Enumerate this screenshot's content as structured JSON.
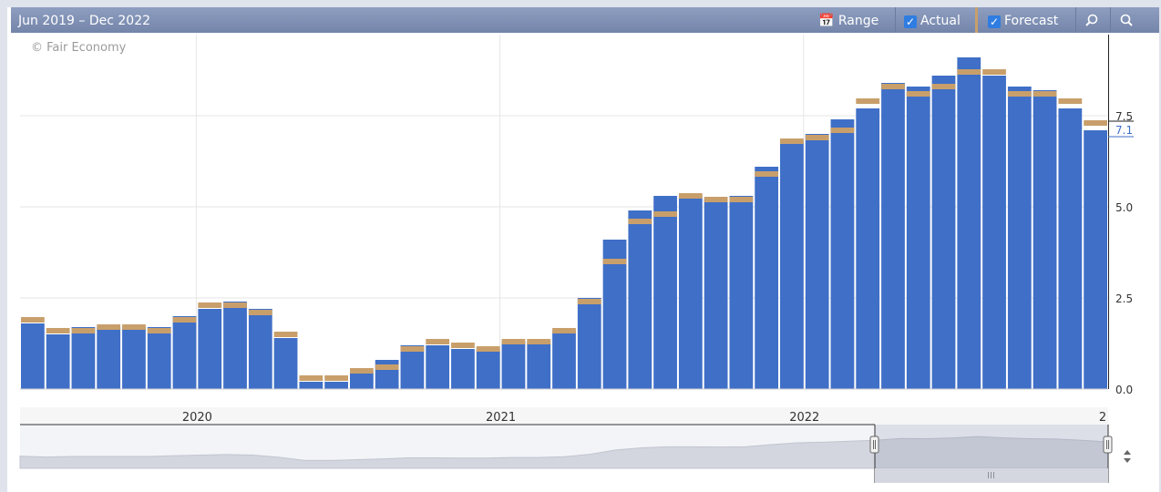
{
  "toolbar": {
    "range_title": "Jun 2019 – Dec 2022",
    "range_label": "Range",
    "actual_label": "Actual",
    "forecast_label": "Forecast"
  },
  "copyright": "© Fair Economy",
  "colors": {
    "actual": "#3f6fc7",
    "forecast": "#c89f6b",
    "grid": "#e6e6e6",
    "toolbar": "#7f8fb5"
  },
  "icons": [
    "calendar-icon",
    "checkbox-icon",
    "zoom-in-icon",
    "zoom-out-icon",
    "scroll-arrows-icon"
  ],
  "chart_data": {
    "type": "bar",
    "categories": [
      "Jun 2019",
      "Jul 2019",
      "Aug 2019",
      "Sep 2019",
      "Oct 2019",
      "Nov 2019",
      "Dec 2019",
      "Jan 2020",
      "Feb 2020",
      "Mar 2020",
      "Apr 2020",
      "May 2020",
      "Jun 2020",
      "Jul 2020",
      "Aug 2020",
      "Sep 2020",
      "Oct 2020",
      "Nov 2020",
      "Dec 2020",
      "Jan 2021",
      "Feb 2021",
      "Mar 2021",
      "Apr 2021",
      "May 2021",
      "Jun 2021",
      "Jul 2021",
      "Aug 2021",
      "Sep 2021",
      "Oct 2021",
      "Nov 2021",
      "Dec 2021",
      "Jan 2022",
      "Feb 2022",
      "Mar 2022",
      "Apr 2022",
      "May 2022",
      "Jun 2022",
      "Jul 2022",
      "Aug 2022",
      "Sep 2022",
      "Oct 2022",
      "Nov 2022",
      "Dec 2022"
    ],
    "series": [
      {
        "name": "Actual",
        "values": [
          1.8,
          1.5,
          1.7,
          1.7,
          1.7,
          1.7,
          2.0,
          2.2,
          2.4,
          2.2,
          1.4,
          0.2,
          0.2,
          0.5,
          0.8,
          1.2,
          1.2,
          1.1,
          1.1,
          1.3,
          1.3,
          1.6,
          2.5,
          4.1,
          4.9,
          5.3,
          5.3,
          5.2,
          5.3,
          6.1,
          6.8,
          7.0,
          7.4,
          7.7,
          8.4,
          8.3,
          8.6,
          9.1,
          8.6,
          8.3,
          8.2,
          7.7,
          7.1
        ]
      },
      {
        "name": "Forecast",
        "values": [
          1.9,
          1.6,
          1.6,
          1.7,
          1.7,
          1.6,
          1.9,
          2.3,
          2.3,
          2.1,
          1.5,
          0.3,
          0.3,
          0.5,
          0.6,
          1.1,
          1.3,
          1.2,
          1.1,
          1.3,
          1.3,
          1.6,
          2.4,
          3.5,
          4.6,
          4.8,
          5.3,
          5.2,
          5.2,
          5.9,
          6.8,
          6.9,
          7.1,
          7.9,
          8.3,
          8.1,
          8.3,
          8.7,
          8.7,
          8.1,
          8.1,
          7.9,
          7.3
        ]
      }
    ],
    "x_tick_labels": [
      "2020",
      "2021",
      "2022",
      "2"
    ],
    "y_ticks": [
      0.0,
      2.5,
      5.0,
      7.5
    ],
    "y_tick_labels": [
      "0.0",
      "2.5",
      "5.0",
      "7.5"
    ],
    "last_value_label": "7.1",
    "ylim": [
      0,
      9.5
    ],
    "grid": true
  }
}
